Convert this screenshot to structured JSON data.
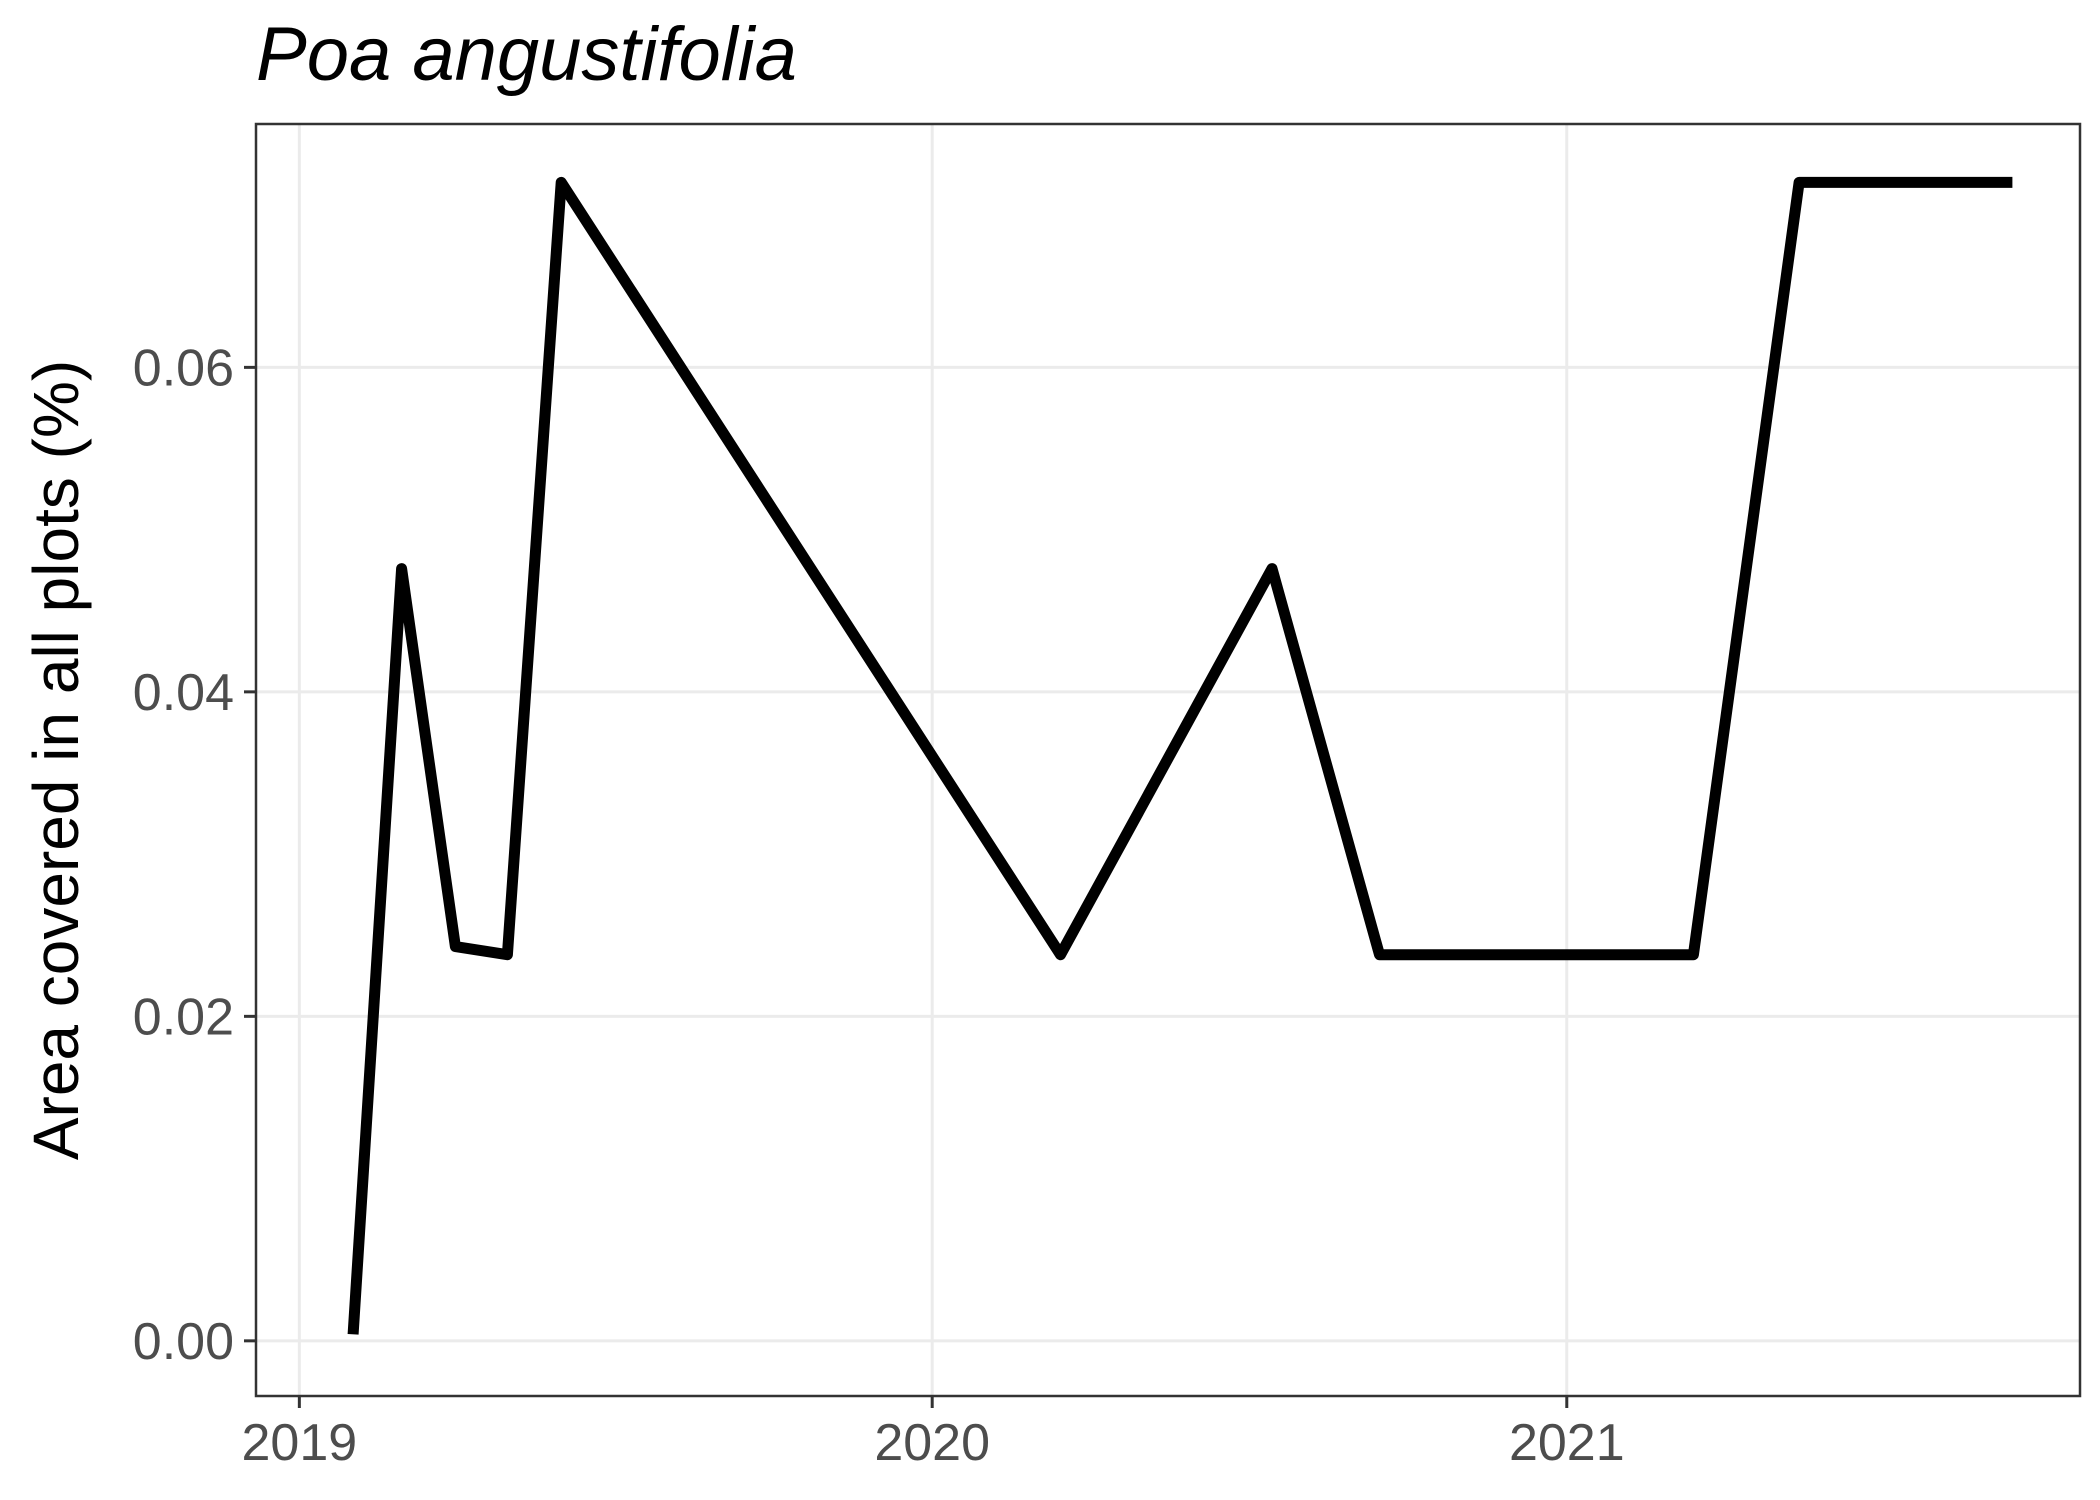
{
  "chart_data": {
    "type": "line",
    "title": "Poa angustifolia",
    "xlabel": "",
    "ylabel": "Area covered in all plots (%)",
    "x_ticks": [
      "2019",
      "2020",
      "2021"
    ],
    "y_ticks": [
      "0.00",
      "0.02",
      "0.04",
      "0.06"
    ],
    "xlim": [
      "2018-12-07",
      "2021-10-24"
    ],
    "ylim": [
      -0.0034,
      0.075
    ],
    "grid": true,
    "legend": "none",
    "series": [
      {
        "color": "#000000",
        "points": [
          {
            "x": "2019-02-01",
            "y": 0.0004
          },
          {
            "x": "2019-03-01",
            "y": 0.0476
          },
          {
            "x": "2019-04-01",
            "y": 0.0243
          },
          {
            "x": "2019-05-01",
            "y": 0.0238
          },
          {
            "x": "2019-06-01",
            "y": 0.0714
          },
          {
            "x": "2020-03-15",
            "y": 0.0238
          },
          {
            "x": "2020-07-15",
            "y": 0.0476
          },
          {
            "x": "2020-09-15",
            "y": 0.0238
          },
          {
            "x": "2021-03-15",
            "y": 0.0238
          },
          {
            "x": "2021-05-15",
            "y": 0.0714
          },
          {
            "x": "2021-09-15",
            "y": 0.0714
          }
        ]
      }
    ]
  }
}
